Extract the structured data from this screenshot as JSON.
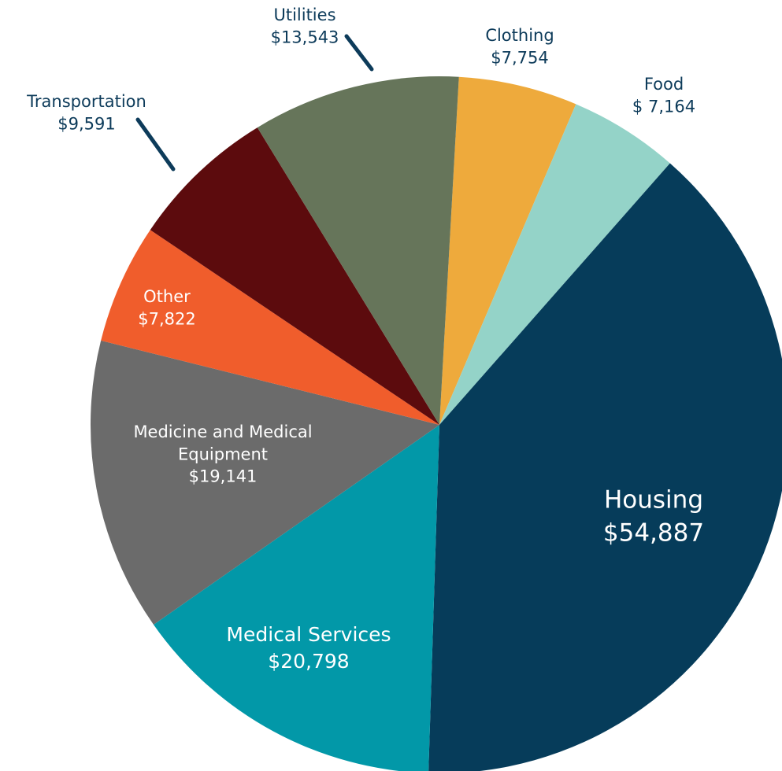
{
  "chart_data": {
    "type": "pie",
    "categories": [
      "Clothing",
      "Food",
      "Housing",
      "Medical Services",
      "Medicine and Medical Equipment",
      "Other",
      "Transportation",
      "Utilities"
    ],
    "values": [
      7754,
      7164,
      54887,
      20798,
      19141,
      7822,
      9591,
      13543
    ],
    "value_labels": [
      "$7,754",
      "$ 7,164",
      "$54,887",
      "$20,798",
      "$19,141",
      "$7,822",
      "$9,591",
      "$13,543"
    ],
    "colors": [
      "#eeaa3c",
      "#94d3c8",
      "#063c5a",
      "#0298a8",
      "#6b6b6b",
      "#f05d2c",
      "#5c0b0d",
      "#66755a"
    ]
  }
}
